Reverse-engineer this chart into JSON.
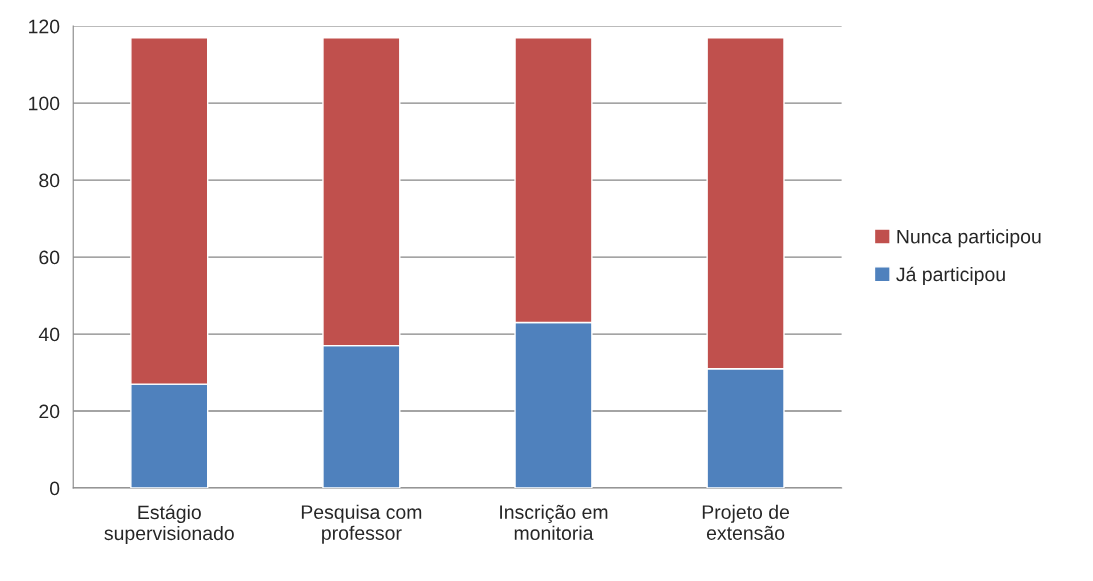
{
  "chart_data": {
    "type": "bar",
    "stacked": true,
    "categories": [
      "Estágio\nsupervisionado",
      "Pesquisa com\nprofessor",
      "Inscrição em\nmonitoria",
      "Projeto de\nextensão"
    ],
    "series": [
      {
        "name": "Já participou",
        "color": "#4f81bd",
        "values": [
          27,
          37,
          43,
          31
        ]
      },
      {
        "name": "Nunca participou",
        "color": "#c0504d",
        "values": [
          90,
          80,
          74,
          86
        ]
      }
    ],
    "ylim": [
      0,
      120
    ],
    "yticks": [
      0,
      20,
      40,
      60,
      80,
      100,
      120
    ],
    "grid": "y",
    "legend": "right"
  }
}
